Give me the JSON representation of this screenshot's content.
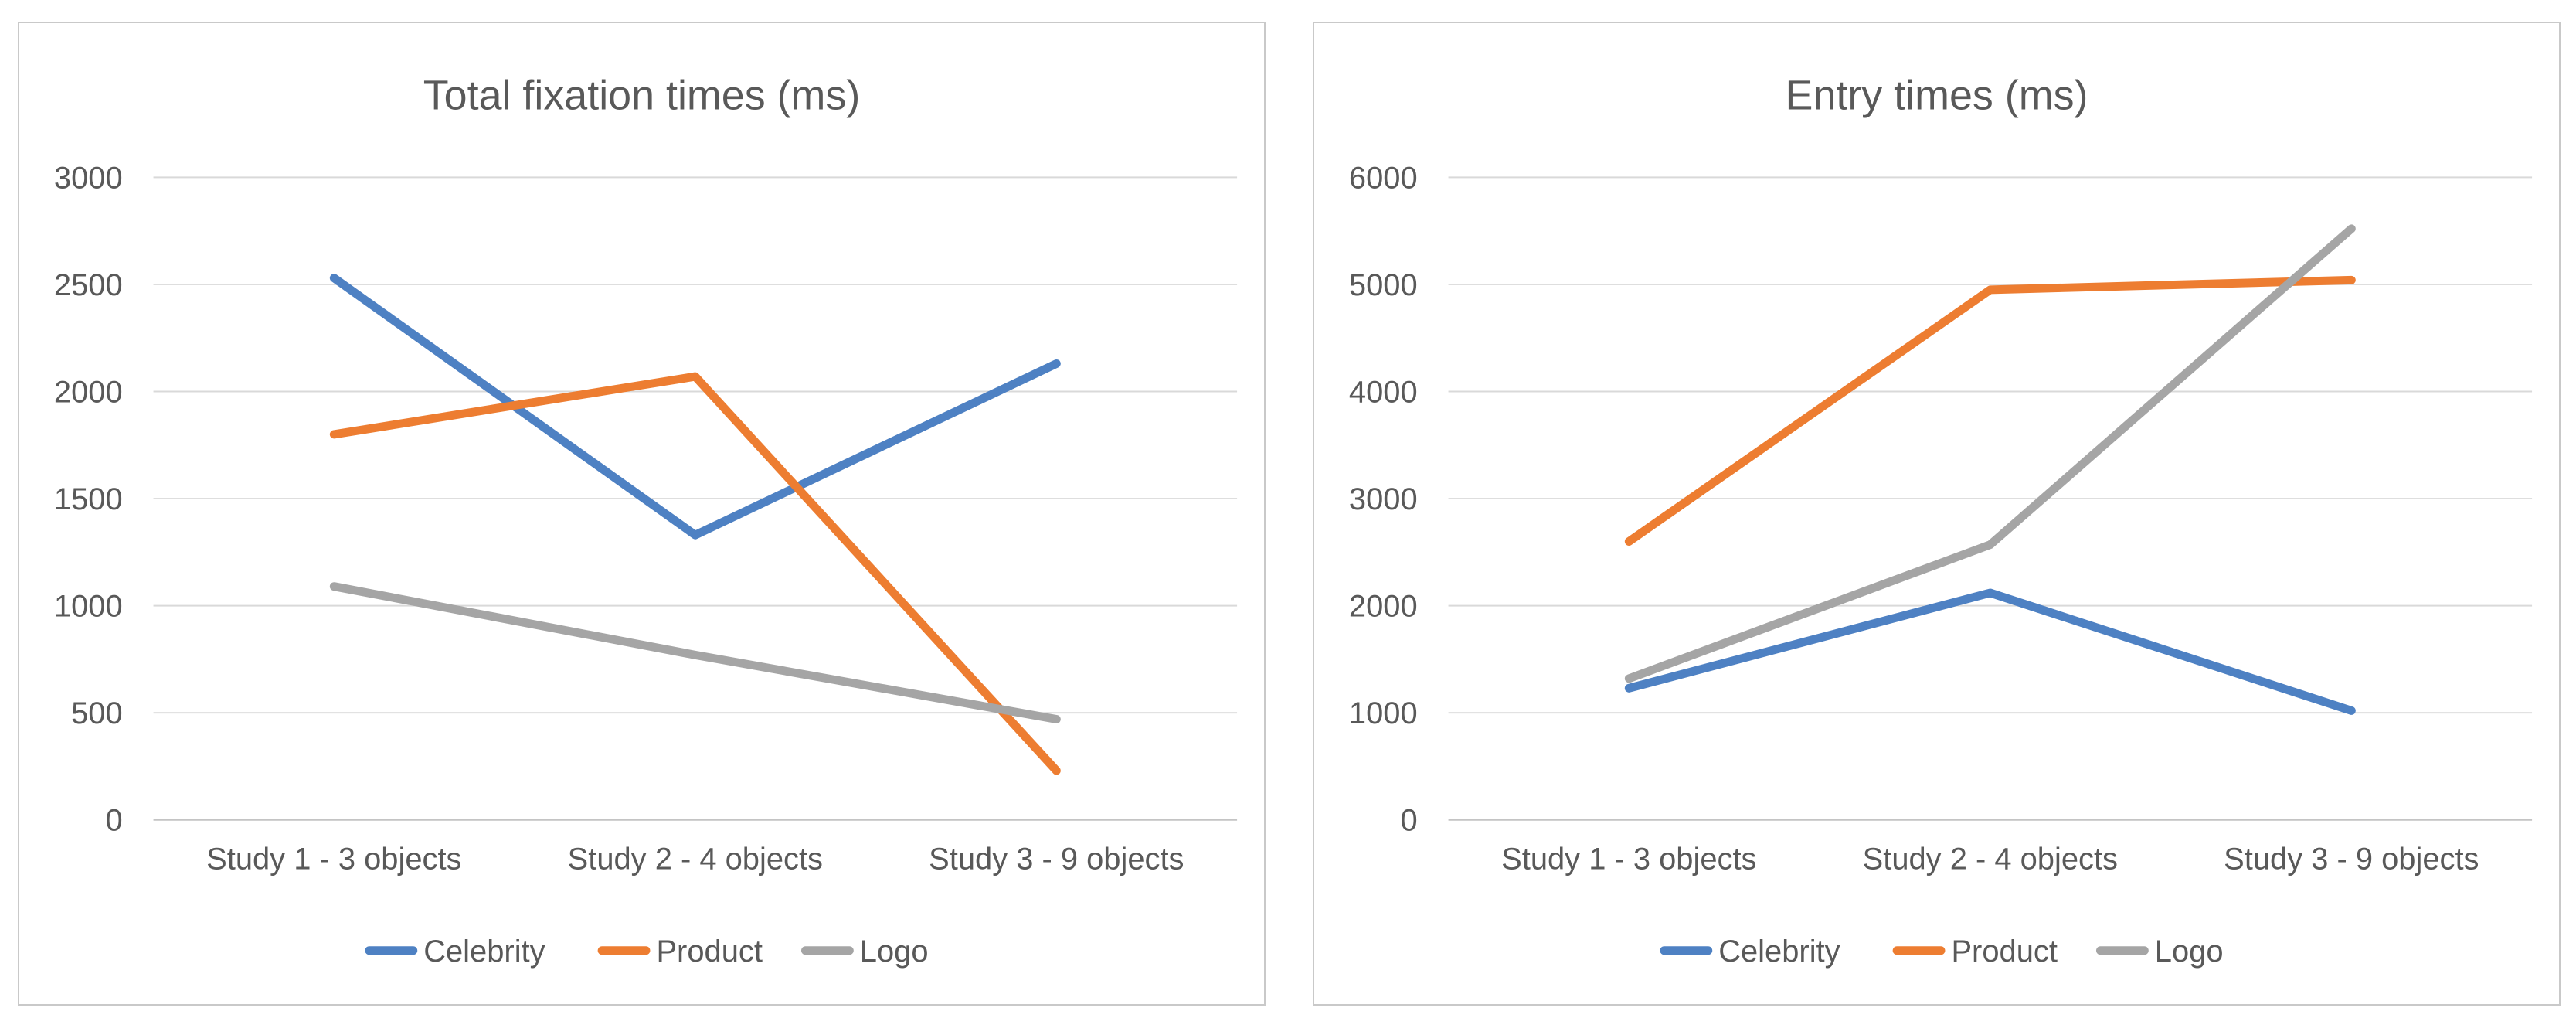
{
  "figure": {
    "background": "#ffffff",
    "panel_border_color": "#c9c9c9",
    "text_color": "#595959",
    "grid_color": "#d9d9d9",
    "axis_line_color": "#c4c4c4"
  },
  "chart_data": [
    {
      "id": "total-fixation-times",
      "type": "line",
      "title": "Total fixation times (ms)",
      "categories": [
        "Study 1 - 3 objects",
        "Study 2 - 4 objects",
        "Study 3 - 9 objects"
      ],
      "series": [
        {
          "name": "Celebrity",
          "color": "#4e81c3",
          "values": [
            2530,
            1330,
            2130
          ]
        },
        {
          "name": "Product",
          "color": "#ed7d31",
          "values": [
            1800,
            2070,
            230
          ]
        },
        {
          "name": "Logo",
          "color": "#a5a5a5",
          "values": [
            1090,
            770,
            470
          ]
        }
      ],
      "y_axis": {
        "min": 0,
        "max": 3000,
        "step": 500,
        "tick_labels": [
          "0",
          "500",
          "1000",
          "1500",
          "2000",
          "2500",
          "3000"
        ]
      },
      "xlabel": "",
      "ylabel": "",
      "grid": "horizontal",
      "legend": {
        "position": "bottom",
        "labels": [
          "Celebrity",
          "Product",
          "Logo"
        ]
      }
    },
    {
      "id": "entry-times",
      "type": "line",
      "title": "Entry times (ms)",
      "categories": [
        "Study 1 - 3 objects",
        "Study 2 - 4 objects",
        "Study 3 - 9 objects"
      ],
      "series": [
        {
          "name": "Celebrity",
          "color": "#4e81c3",
          "values": [
            1230,
            2120,
            1020
          ]
        },
        {
          "name": "Product",
          "color": "#ed7d31",
          "values": [
            2600,
            4950,
            5040
          ]
        },
        {
          "name": "Logo",
          "color": "#a5a5a5",
          "values": [
            1320,
            2570,
            5520
          ]
        }
      ],
      "y_axis": {
        "min": 0,
        "max": 6000,
        "step": 1000,
        "tick_labels": [
          "0",
          "1000",
          "2000",
          "3000",
          "4000",
          "5000",
          "6000"
        ]
      },
      "xlabel": "",
      "ylabel": "",
      "grid": "horizontal",
      "legend": {
        "position": "bottom",
        "labels": [
          "Celebrity",
          "Product",
          "Logo"
        ]
      }
    }
  ]
}
